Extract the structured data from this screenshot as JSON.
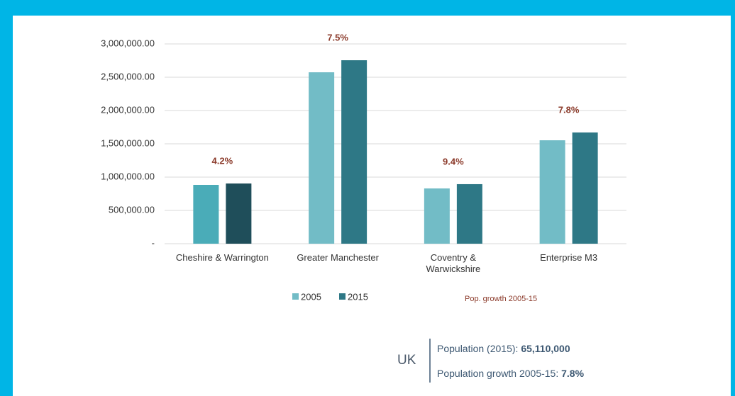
{
  "chart_data": {
    "type": "bar",
    "categories": [
      "Cheshire & Warrington",
      "Greater Manchester",
      "Coventry & Warwickshire",
      "Enterprise M3"
    ],
    "series": [
      {
        "name": "2005",
        "color": "#72bcc6",
        "point_colors": [
          "#4aacb8",
          "#72bcc6",
          "#72bcc6",
          "#72bcc6"
        ],
        "values": [
          883000,
          2574000,
          830000,
          1553000
        ]
      },
      {
        "name": "2015",
        "color": "#2e7886",
        "point_colors": [
          "#1f4e5a",
          "#2e7886",
          "#2e7886",
          "#2e7886"
        ],
        "values": [
          904000,
          2755000,
          894000,
          1670000
        ]
      }
    ],
    "growth": {
      "name": "Pop. growth 2005-15",
      "color": "#8b3a2a",
      "values": [
        4.2,
        7.5,
        9.4,
        7.8
      ],
      "value_labels": [
        "4.2%",
        "7.5%",
        "9.4%",
        "7.8%"
      ]
    },
    "ylim": [
      0,
      3000000
    ],
    "yticks": [
      {
        "value": 0,
        "label": "-"
      },
      {
        "value": 500000,
        "label": "500,000.00"
      },
      {
        "value": 1000000,
        "label": "1,000,000.00"
      },
      {
        "value": 1500000,
        "label": "1,500,000.00"
      },
      {
        "value": 2000000,
        "label": "2,000,000.00"
      },
      {
        "value": 2500000,
        "label": "2,500,000.00"
      },
      {
        "value": 3000000,
        "label": "3,000,000.00"
      }
    ],
    "grid": true
  },
  "info": {
    "region": "UK",
    "population_label": "Population (2015): ",
    "population": "65,110,000",
    "growth_label": "Population growth 2005-15: ",
    "growth": "7.8%"
  }
}
